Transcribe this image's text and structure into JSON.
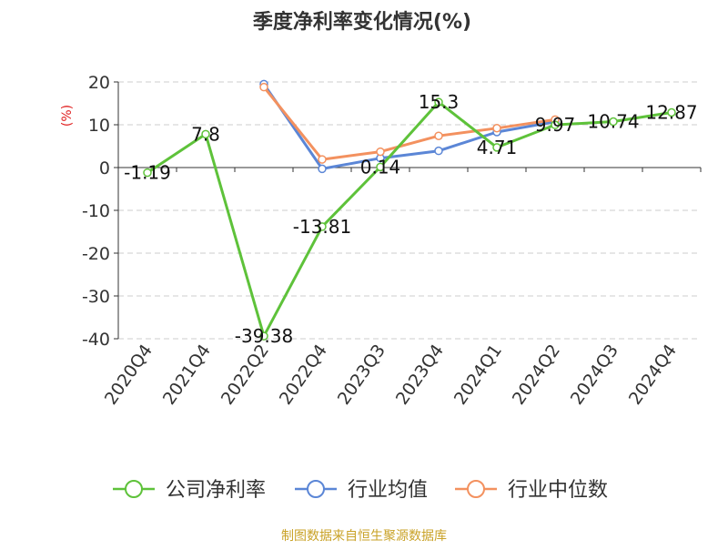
{
  "chart_data": {
    "type": "line",
    "title": "季度净利率变化情况(%)",
    "ylabel": "(%)",
    "categories": [
      "2020Q4",
      "2021Q4",
      "2022Q2",
      "2022Q4",
      "2023Q3",
      "2023Q4",
      "2024Q1",
      "2024Q2",
      "2024Q3",
      "2024Q4"
    ],
    "ylim": [
      -40,
      20
    ],
    "yticks": [
      20,
      10,
      0,
      -10,
      -20,
      -30,
      -40
    ],
    "grid": true,
    "legend_position": "bottom",
    "series": [
      {
        "name": "公司净利率",
        "color": "#5ec23a",
        "values": [
          -1.19,
          7.8,
          -39.38,
          -13.81,
          0.14,
          15.3,
          4.71,
          9.97,
          10.74,
          12.87
        ],
        "labels": [
          "-1.19",
          "7.8",
          "-39.38",
          "-13.81",
          "0.14",
          "15.3",
          "4.71",
          "9.97",
          "10.74",
          "12.87"
        ]
      },
      {
        "name": "行业均值",
        "color": "#5b86d6",
        "values": [
          null,
          null,
          19.5,
          -0.3,
          2.2,
          3.9,
          8.3,
          10.7,
          null,
          null
        ]
      },
      {
        "name": "行业中位数",
        "color": "#f3915f",
        "values": [
          null,
          null,
          18.8,
          1.9,
          3.7,
          7.4,
          9.2,
          11.2,
          null,
          null
        ]
      }
    ],
    "source": "制图数据来自恒生聚源数据库"
  }
}
